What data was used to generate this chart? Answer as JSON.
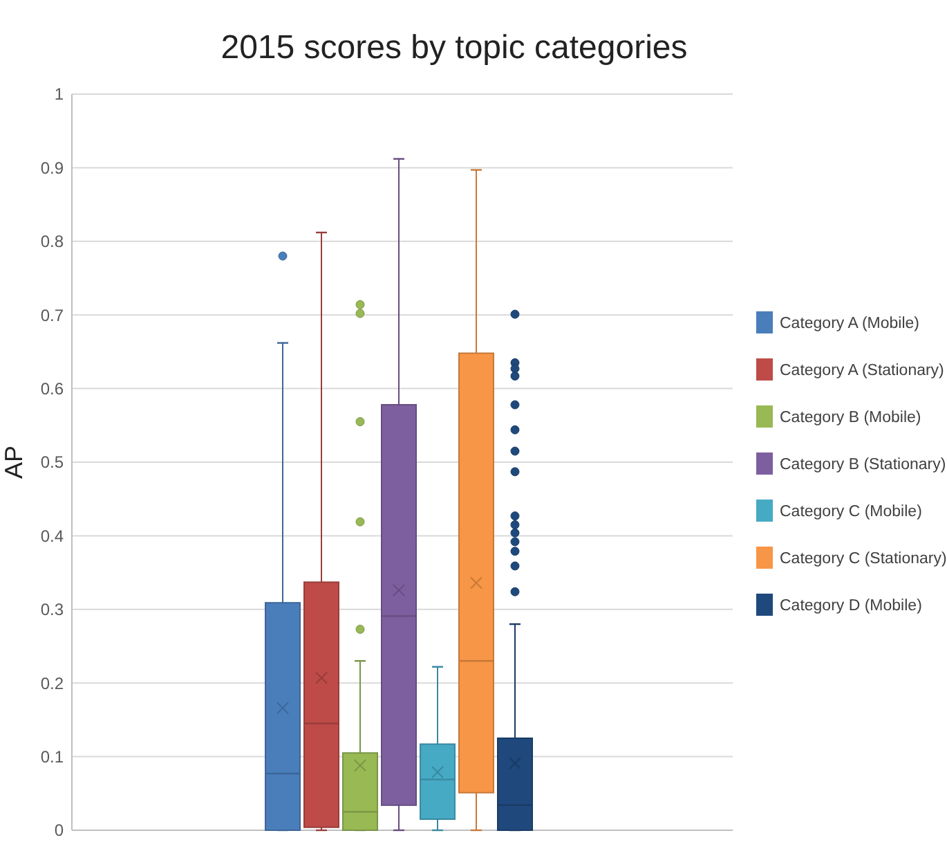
{
  "chart_data": {
    "type": "box",
    "title": "2015 scores by topic categories",
    "ylabel": "AP",
    "categories": [
      null
    ],
    "ylim": [
      0,
      1
    ],
    "yticks": [
      0,
      0.1,
      0.2,
      0.3,
      0.4,
      0.5,
      0.6,
      0.7,
      0.8,
      0.9,
      1
    ],
    "grid": "y",
    "legend": "right",
    "series": [
      {
        "name": "Category A (Mobile)",
        "color": "#4a7ebb",
        "boxes": [
          {
            "low": 0,
            "q1": 0,
            "median": 0.077,
            "q3": 0.309,
            "high": 0.662,
            "mean": 0.166,
            "outliers": [
              0.78
            ]
          }
        ]
      },
      {
        "name": "Category A (Stationary)",
        "color": "#be4b48",
        "boxes": [
          {
            "low": 0,
            "q1": 0.004,
            "median": 0.145,
            "q3": 0.337,
            "high": 0.812,
            "mean": 0.207
          }
        ]
      },
      {
        "name": "Category B (Mobile)",
        "color": "#98b954",
        "boxes": [
          {
            "low": 0,
            "q1": 0,
            "median": 0.025,
            "q3": 0.105,
            "high": 0.23,
            "mean": 0.088,
            "outliers": [
              0.714,
              0.702,
              0.555,
              0.419,
              0.273
            ]
          }
        ]
      },
      {
        "name": "Category B (Stationary)",
        "color": "#7d5fa0",
        "boxes": [
          {
            "low": 0,
            "q1": 0.034,
            "median": 0.291,
            "q3": 0.578,
            "high": 0.912,
            "mean": 0.326
          }
        ]
      },
      {
        "name": "Category C (Mobile)",
        "color": "#46aac5",
        "boxes": [
          {
            "low": 0,
            "q1": 0.015,
            "median": 0.069,
            "q3": 0.117,
            "high": 0.222,
            "mean": 0.079
          }
        ]
      },
      {
        "name": "Category C (Stationary)",
        "color": "#f79646",
        "boxes": [
          {
            "low": 0,
            "q1": 0.051,
            "median": 0.23,
            "q3": 0.648,
            "high": 0.897,
            "mean": 0.336
          }
        ]
      },
      {
        "name": "Category D (Mobile)",
        "color": "#1f497d",
        "boxes": [
          {
            "low": 0,
            "q1": 0,
            "median": 0.034,
            "q3": 0.125,
            "high": 0.28,
            "mean": 0.091,
            "outliers": [
              0.701,
              0.635,
              0.627,
              0.617,
              0.578,
              0.544,
              0.515,
              0.487,
              0.427,
              0.415,
              0.404,
              0.392,
              0.379,
              0.359,
              0.324
            ]
          }
        ]
      }
    ]
  }
}
